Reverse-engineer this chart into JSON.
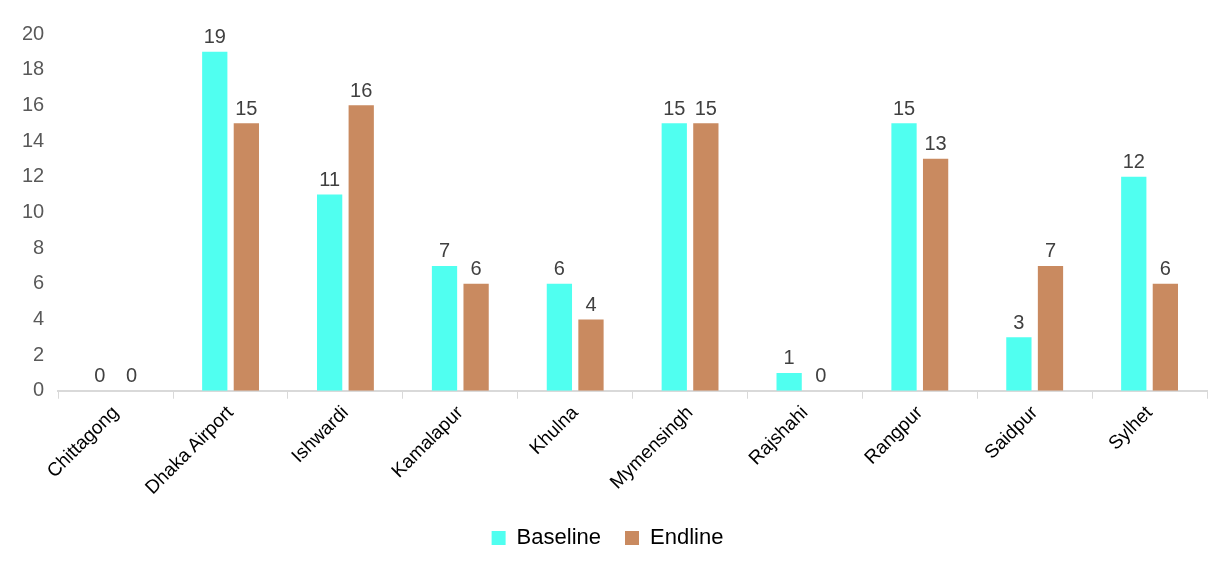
{
  "chart_data": {
    "type": "bar",
    "categories": [
      "Chittagong",
      "Dhaka Airport",
      "Ishwardi",
      "Kamalapur",
      "Khulna",
      "Mymensingh",
      "Rajshahi",
      "Rangpur",
      "Saidpur",
      "Sylhet"
    ],
    "series": [
      {
        "name": "Baseline",
        "color": "#50fff0",
        "values": [
          0,
          19,
          11,
          7,
          6,
          15,
          1,
          15,
          3,
          12
        ]
      },
      {
        "name": "Endline",
        "color": "#c98a60",
        "values": [
          0,
          15,
          16,
          6,
          4,
          15,
          0,
          13,
          7,
          6
        ]
      }
    ],
    "ylim": [
      0,
      20
    ],
    "yticks": [
      0,
      2,
      4,
      6,
      8,
      10,
      12,
      14,
      16,
      18,
      20
    ],
    "grid": false,
    "legend": "bottom",
    "data_labels": true
  }
}
